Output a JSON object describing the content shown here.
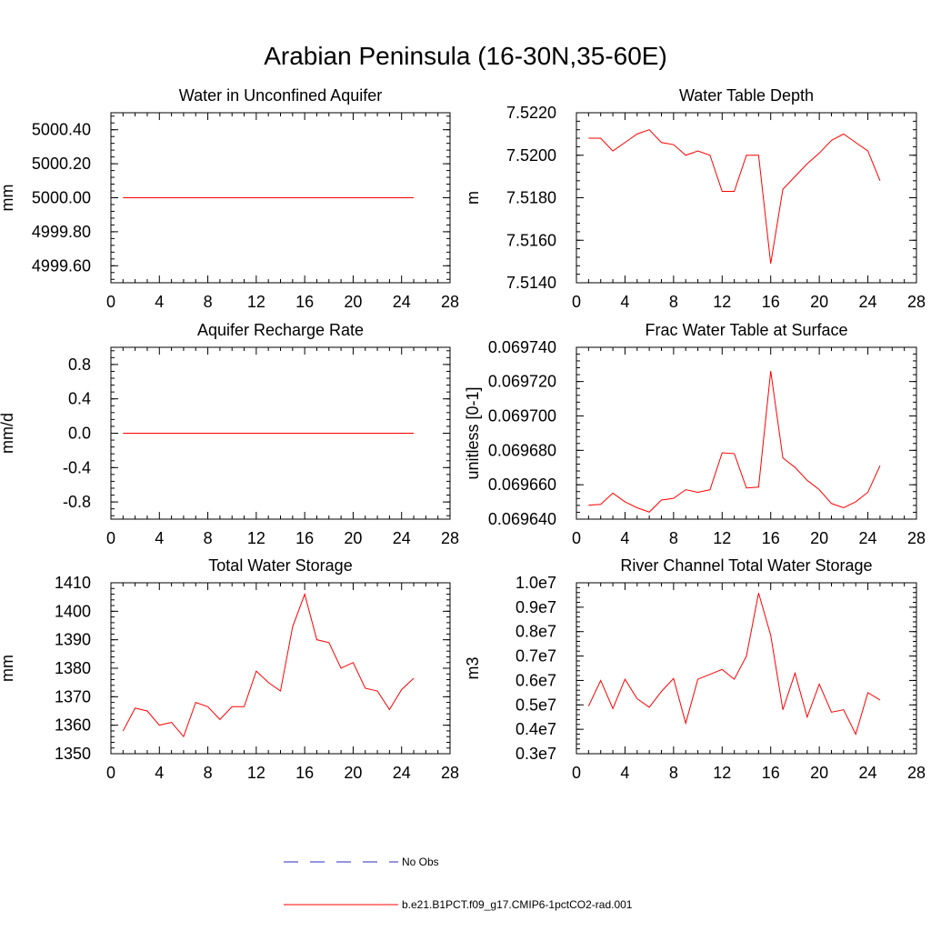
{
  "title": "Arabian Peninsula (16-30N,35-60E)",
  "colors": {
    "model": "#ff0000",
    "obs": "#2b2bbf",
    "axis": "#000000"
  },
  "legend": {
    "obs_label": "No Obs",
    "model_label": "b.e21.B1PCT.f09_g17.CMIP6-1pctCO2-rad.001"
  },
  "chart_data": [
    {
      "type": "line",
      "title": "Water in Unconfined Aquifer",
      "ylabel": "mm",
      "xlim": [
        0,
        28
      ],
      "ylim": [
        4999.5,
        5000.5
      ],
      "xticks": [
        0,
        4,
        8,
        12,
        16,
        20,
        24,
        28
      ],
      "yticks": [
        4999.6,
        4999.8,
        5000.0,
        5000.2,
        5000.4
      ],
      "ytick_labels": [
        "4999.60",
        "4999.80",
        "5000.00",
        "5000.20",
        "5000.40"
      ],
      "x": [
        1,
        25
      ],
      "series": [
        {
          "name": "b.e21.B1PCT.f09_g17.CMIP6-1pctCO2-rad.001",
          "values": [
            5000.0,
            5000.0
          ]
        }
      ]
    },
    {
      "type": "line",
      "title": "Water Table Depth",
      "ylabel": "m",
      "xlim": [
        0,
        28
      ],
      "ylim": [
        7.514,
        7.522
      ],
      "xticks": [
        0,
        4,
        8,
        12,
        16,
        20,
        24,
        28
      ],
      "yticks": [
        7.514,
        7.516,
        7.518,
        7.52,
        7.522
      ],
      "ytick_labels": [
        "7.5140",
        "7.5160",
        "7.5180",
        "7.5200",
        "7.5220"
      ],
      "x": [
        1,
        2,
        3,
        4,
        5,
        6,
        7,
        8,
        9,
        10,
        11,
        12,
        13,
        14,
        15,
        16,
        17,
        18,
        19,
        20,
        21,
        22,
        23,
        24,
        25
      ],
      "series": [
        {
          "name": "b.e21.B1PCT.f09_g17.CMIP6-1pctCO2-rad.001",
          "values": [
            7.5208,
            7.5208,
            7.5202,
            7.5206,
            7.521,
            7.5212,
            7.5206,
            7.5205,
            7.52,
            7.5202,
            7.52,
            7.5183,
            7.5183,
            7.52,
            7.52,
            7.5149,
            7.5184,
            7.519,
            7.5196,
            7.5201,
            7.5207,
            7.521,
            7.5206,
            7.5202,
            7.5188
          ]
        }
      ]
    },
    {
      "type": "line",
      "title": "Aquifer Recharge Rate",
      "ylabel": "mm/d",
      "xlim": [
        0,
        28
      ],
      "ylim": [
        -1.0,
        1.0
      ],
      "xticks": [
        0,
        4,
        8,
        12,
        16,
        20,
        24,
        28
      ],
      "yticks": [
        -0.8,
        -0.4,
        0.0,
        0.4,
        0.8
      ],
      "ytick_labels": [
        "-0.8",
        "-0.4",
        "0.0",
        "0.4",
        "0.8"
      ],
      "x": [
        1,
        25
      ],
      "series": [
        {
          "name": "b.e21.B1PCT.f09_g17.CMIP6-1pctCO2-rad.001",
          "values": [
            0.0,
            0.0
          ]
        }
      ]
    },
    {
      "type": "line",
      "title": "Frac Water Table at Surface",
      "ylabel": "unitless [0-1]",
      "xlim": [
        0,
        28
      ],
      "ylim": [
        0.0696399,
        0.0697398
      ],
      "xticks": [
        0,
        4,
        8,
        12,
        16,
        20,
        24,
        28
      ],
      "yticks": [
        0.0696399,
        0.0696599,
        0.0696799,
        0.0696999,
        0.0697199,
        0.0697398
      ],
      "ytick_labels": [
        "0.069640",
        "0.069660",
        "0.069680",
        "0.069700",
        "0.069720",
        "0.069740"
      ],
      "x": [
        1,
        2,
        3,
        4,
        5,
        6,
        7,
        8,
        9,
        10,
        11,
        12,
        13,
        14,
        15,
        16,
        17,
        18,
        19,
        20,
        21,
        22,
        23,
        24,
        25
      ],
      "series": [
        {
          "name": "b.e21.B1PCT.f09_g17.CMIP6-1pctCO2-rad.001",
          "values": [
            0.069648,
            0.0696485,
            0.069655,
            0.06965,
            0.0696465,
            0.069644,
            0.069651,
            0.069652,
            0.069657,
            0.0696555,
            0.069657,
            0.0696785,
            0.069678,
            0.069658,
            0.0696585,
            0.069726,
            0.0696755,
            0.06967,
            0.0696625,
            0.069657,
            0.069649,
            0.0696465,
            0.06965,
            0.0696555,
            0.069671
          ]
        }
      ]
    },
    {
      "type": "line",
      "title": "Total Water Storage",
      "ylabel": "mm",
      "xlim": [
        0,
        28
      ],
      "ylim": [
        1350,
        1410
      ],
      "xticks": [
        0,
        4,
        8,
        12,
        16,
        20,
        24,
        28
      ],
      "yticks": [
        1350,
        1360,
        1370,
        1380,
        1390,
        1400,
        1410
      ],
      "ytick_labels": [
        "1350",
        "1360",
        "1370",
        "1380",
        "1390",
        "1400",
        "1410"
      ],
      "x": [
        1,
        2,
        3,
        4,
        5,
        6,
        7,
        8,
        9,
        10,
        11,
        12,
        13,
        14,
        15,
        16,
        17,
        18,
        19,
        20,
        21,
        22,
        23,
        24,
        25
      ],
      "series": [
        {
          "name": "b.e21.B1PCT.f09_g17.CMIP6-1pctCO2-rad.001",
          "values": [
            1358,
            1366,
            1365,
            1360,
            1361,
            1356,
            1368,
            1366.5,
            1362,
            1366.5,
            1366.5,
            1379,
            1375,
            1372,
            1394.5,
            1406,
            1390,
            1389,
            1380,
            1382,
            1373,
            1372,
            1365.5,
            1372.5,
            1376.5
          ]
        }
      ]
    },
    {
      "type": "line",
      "title": "River Channel Total Water Storage",
      "ylabel": "m3",
      "xlim": [
        0,
        28
      ],
      "ylim": [
        3000000,
        10000000
      ],
      "xticks": [
        0,
        4,
        8,
        12,
        16,
        20,
        24,
        28
      ],
      "yticks": [
        3000000,
        4000000,
        5000000,
        6000000,
        7000000,
        8000000,
        9000000,
        10000000
      ],
      "ytick_labels": [
        "0.3e7",
        "0.4e7",
        "0.5e7",
        "0.6e7",
        "0.7e7",
        "0.8e7",
        "0.9e7",
        "1.0e7"
      ],
      "x": [
        1,
        2,
        3,
        4,
        5,
        6,
        7,
        8,
        9,
        10,
        11,
        12,
        13,
        14,
        15,
        16,
        17,
        18,
        19,
        20,
        21,
        22,
        23,
        24,
        25
      ],
      "series": [
        {
          "name": "b.e21.B1PCT.f09_g17.CMIP6-1pctCO2-rad.001",
          "values": [
            4950000,
            6000000,
            4850000,
            6050000,
            5250000,
            4900000,
            5550000,
            6080000,
            4250000,
            6050000,
            6250000,
            6450000,
            6050000,
            7000000,
            9580000,
            7850000,
            4800000,
            6300000,
            4500000,
            5850000,
            4700000,
            4800000,
            3800000,
            5500000,
            5200000
          ]
        }
      ]
    }
  ]
}
